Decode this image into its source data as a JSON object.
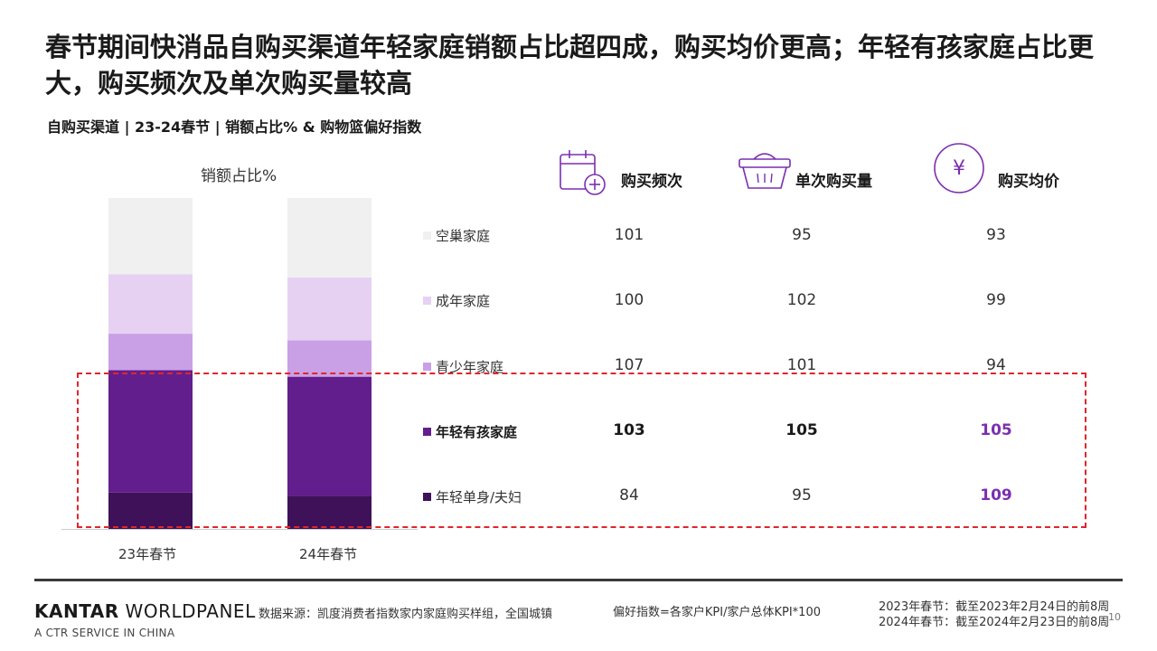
{
  "title": "春节期间快消品自购买渠道年轻家庭销额占比超四成，购买均价更高；年轻有孩家庭占比更大，购买频次及单次购买量较高",
  "subtitle": "自购买渠道 | 23-24春节 | 销额占比% & 购物篮偏好指数",
  "bar_chart_title": "销额占比%",
  "column_heads": [
    "购买频次",
    "单次购买量",
    "购买均价"
  ],
  "icons": [
    "calendar-plus-icon",
    "basket-icon",
    "yen-coin-icon"
  ],
  "colors": {
    "empty_nest": "#f0f0f0",
    "adult": "#e6d1f2",
    "teen": "#c9a0e6",
    "young_kids": "#621e8c",
    "young_single": "#3e1159",
    "highlight_border": "#e0262b",
    "highlight_value": "#7a2fb0"
  },
  "chart_data": {
    "type": "bar",
    "stacked": true,
    "title": "销额占比%",
    "categories": [
      "23年春节",
      "24年春节"
    ],
    "series": [
      {
        "name": "年轻单身/夫妇",
        "values": [
          11,
          10
        ]
      },
      {
        "name": "年轻有孩家庭",
        "values": [
          37,
          36
        ]
      },
      {
        "name": "青少年家庭",
        "values": [
          11,
          11
        ]
      },
      {
        "name": "成年家庭",
        "values": [
          18,
          19
        ]
      },
      {
        "name": "空巢家庭",
        "values": [
          23,
          24
        ]
      }
    ],
    "ylim": [
      0,
      100
    ]
  },
  "index_table": {
    "rows": [
      {
        "label": "空巢家庭",
        "values": [
          "101",
          "95",
          "93"
        ],
        "bold": false,
        "highlight_last": false
      },
      {
        "label": "成年家庭",
        "values": [
          "100",
          "102",
          "99"
        ],
        "bold": false,
        "highlight_last": false
      },
      {
        "label": "青少年家庭",
        "values": [
          "107",
          "101",
          "94"
        ],
        "bold": false,
        "highlight_last": false
      },
      {
        "label": "年轻有孩家庭",
        "values": [
          "103",
          "105",
          "105"
        ],
        "bold": true,
        "highlight_last": true
      },
      {
        "label": "年轻单身/夫妇",
        "values": [
          "84",
          "95",
          "109"
        ],
        "bold": false,
        "highlight_last": true
      }
    ]
  },
  "footer": {
    "logo_main": "KANTAR",
    "logo_second": " WORLDPANEL",
    "logo_sub": "A CTR SERVICE IN CHINA",
    "source": "数据来源：凯度消费者指数家内家庭购买样组，全国城镇",
    "formula": "偏好指数=各家户KPI/家户总体KPI*100",
    "period_2023": "2023年春节：截至2023年2月24日的前8周",
    "period_2024": "2024年春节：截至2024年2月23日的前8周",
    "page": "10"
  }
}
